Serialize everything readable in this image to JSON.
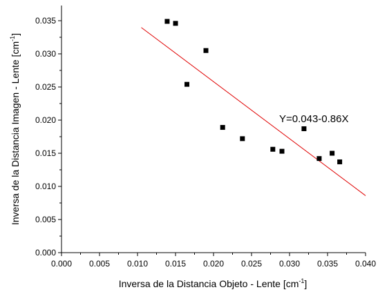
{
  "chart_data": {
    "type": "scatter",
    "xlabel": "Inversa de la Distancia Objeto - Lente [cm",
    "ylabel": "Inversa de la Distancia Imagen - Lente [cm",
    "unit_sup": "-1",
    "xlim": [
      0.0,
      0.04
    ],
    "ylim": [
      0.0,
      0.037
    ],
    "xticks": [
      "0.000",
      "0.005",
      "0.010",
      "0.015",
      "0.020",
      "0.025",
      "0.030",
      "0.035",
      "0.040"
    ],
    "yticks": [
      "0.000",
      "0.005",
      "0.010",
      "0.015",
      "0.020",
      "0.025",
      "0.030",
      "0.035"
    ],
    "x": [
      0.0139,
      0.015,
      0.0165,
      0.019,
      0.0212,
      0.0238,
      0.0278,
      0.029,
      0.0319,
      0.0339,
      0.0356,
      0.0366
    ],
    "y": [
      0.0349,
      0.0346,
      0.0254,
      0.0305,
      0.0189,
      0.0172,
      0.0156,
      0.0153,
      0.0187,
      0.0142,
      0.015,
      0.0137
    ],
    "fit": {
      "x_start": 0.0105,
      "x_end": 0.04,
      "intercept": 0.043,
      "slope": -0.86,
      "color": "#e00000"
    },
    "annotation": "Y=0.043-0.86X",
    "grid": false,
    "legend": "none"
  }
}
